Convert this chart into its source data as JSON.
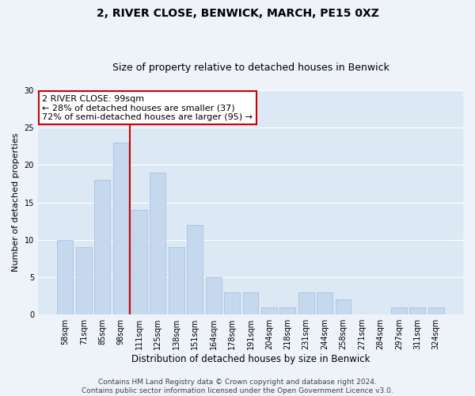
{
  "title": "2, RIVER CLOSE, BENWICK, MARCH, PE15 0XZ",
  "subtitle": "Size of property relative to detached houses in Benwick",
  "xlabel": "Distribution of detached houses by size in Benwick",
  "ylabel": "Number of detached properties",
  "categories": [
    "58sqm",
    "71sqm",
    "85sqm",
    "98sqm",
    "111sqm",
    "125sqm",
    "138sqm",
    "151sqm",
    "164sqm",
    "178sqm",
    "191sqm",
    "204sqm",
    "218sqm",
    "231sqm",
    "244sqm",
    "258sqm",
    "271sqm",
    "284sqm",
    "297sqm",
    "311sqm",
    "324sqm"
  ],
  "values": [
    10,
    9,
    18,
    23,
    14,
    19,
    9,
    12,
    5,
    3,
    3,
    1,
    1,
    3,
    3,
    2,
    0,
    0,
    1,
    1,
    1
  ],
  "bar_color": "#c5d8ed",
  "bar_edgecolor": "#a8c4dc",
  "vline_x": 3.5,
  "vline_color": "#cc0000",
  "annotation_text": "2 RIVER CLOSE: 99sqm\n← 28% of detached houses are smaller (37)\n72% of semi-detached houses are larger (95) →",
  "annotation_box_edgecolor": "#cc0000",
  "ylim": [
    0,
    30
  ],
  "yticks": [
    0,
    5,
    10,
    15,
    20,
    25,
    30
  ],
  "footer_line1": "Contains HM Land Registry data © Crown copyright and database right 2024.",
  "footer_line2": "Contains public sector information licensed under the Open Government Licence v3.0.",
  "bg_color": "#eef2f9",
  "plot_bg_color": "#dce8f4",
  "grid_color": "#ffffff",
  "title_fontsize": 10,
  "subtitle_fontsize": 9,
  "xlabel_fontsize": 8.5,
  "ylabel_fontsize": 8,
  "tick_fontsize": 7,
  "footer_fontsize": 6.5,
  "annotation_fontsize": 8
}
